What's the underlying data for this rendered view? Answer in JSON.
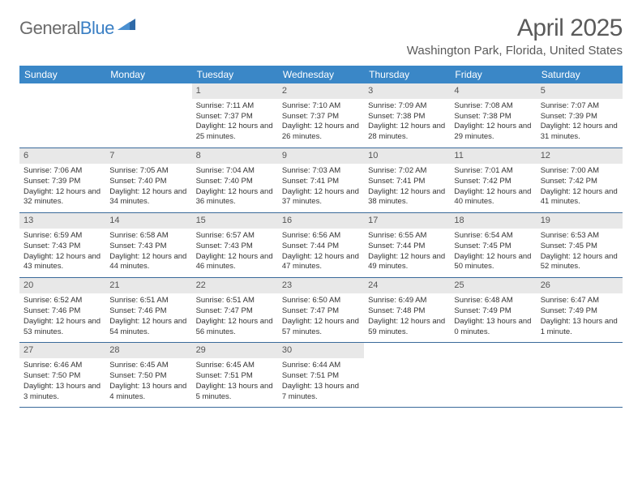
{
  "logo": {
    "text1": "General",
    "text2": "Blue"
  },
  "title": "April 2025",
  "location": "Washington Park, Florida, United States",
  "header_bg": "#3a87c7",
  "border_color": "#3a6a9a",
  "daynum_bg": "#e8e8e8",
  "day_names": [
    "Sunday",
    "Monday",
    "Tuesday",
    "Wednesday",
    "Thursday",
    "Friday",
    "Saturday"
  ],
  "weeks": [
    [
      null,
      null,
      {
        "n": "1",
        "sr": "7:11 AM",
        "ss": "7:37 PM",
        "dl": "12 hours and 25 minutes."
      },
      {
        "n": "2",
        "sr": "7:10 AM",
        "ss": "7:37 PM",
        "dl": "12 hours and 26 minutes."
      },
      {
        "n": "3",
        "sr": "7:09 AM",
        "ss": "7:38 PM",
        "dl": "12 hours and 28 minutes."
      },
      {
        "n": "4",
        "sr": "7:08 AM",
        "ss": "7:38 PM",
        "dl": "12 hours and 29 minutes."
      },
      {
        "n": "5",
        "sr": "7:07 AM",
        "ss": "7:39 PM",
        "dl": "12 hours and 31 minutes."
      }
    ],
    [
      {
        "n": "6",
        "sr": "7:06 AM",
        "ss": "7:39 PM",
        "dl": "12 hours and 32 minutes."
      },
      {
        "n": "7",
        "sr": "7:05 AM",
        "ss": "7:40 PM",
        "dl": "12 hours and 34 minutes."
      },
      {
        "n": "8",
        "sr": "7:04 AM",
        "ss": "7:40 PM",
        "dl": "12 hours and 36 minutes."
      },
      {
        "n": "9",
        "sr": "7:03 AM",
        "ss": "7:41 PM",
        "dl": "12 hours and 37 minutes."
      },
      {
        "n": "10",
        "sr": "7:02 AM",
        "ss": "7:41 PM",
        "dl": "12 hours and 38 minutes."
      },
      {
        "n": "11",
        "sr": "7:01 AM",
        "ss": "7:42 PM",
        "dl": "12 hours and 40 minutes."
      },
      {
        "n": "12",
        "sr": "7:00 AM",
        "ss": "7:42 PM",
        "dl": "12 hours and 41 minutes."
      }
    ],
    [
      {
        "n": "13",
        "sr": "6:59 AM",
        "ss": "7:43 PM",
        "dl": "12 hours and 43 minutes."
      },
      {
        "n": "14",
        "sr": "6:58 AM",
        "ss": "7:43 PM",
        "dl": "12 hours and 44 minutes."
      },
      {
        "n": "15",
        "sr": "6:57 AM",
        "ss": "7:43 PM",
        "dl": "12 hours and 46 minutes."
      },
      {
        "n": "16",
        "sr": "6:56 AM",
        "ss": "7:44 PM",
        "dl": "12 hours and 47 minutes."
      },
      {
        "n": "17",
        "sr": "6:55 AM",
        "ss": "7:44 PM",
        "dl": "12 hours and 49 minutes."
      },
      {
        "n": "18",
        "sr": "6:54 AM",
        "ss": "7:45 PM",
        "dl": "12 hours and 50 minutes."
      },
      {
        "n": "19",
        "sr": "6:53 AM",
        "ss": "7:45 PM",
        "dl": "12 hours and 52 minutes."
      }
    ],
    [
      {
        "n": "20",
        "sr": "6:52 AM",
        "ss": "7:46 PM",
        "dl": "12 hours and 53 minutes."
      },
      {
        "n": "21",
        "sr": "6:51 AM",
        "ss": "7:46 PM",
        "dl": "12 hours and 54 minutes."
      },
      {
        "n": "22",
        "sr": "6:51 AM",
        "ss": "7:47 PM",
        "dl": "12 hours and 56 minutes."
      },
      {
        "n": "23",
        "sr": "6:50 AM",
        "ss": "7:47 PM",
        "dl": "12 hours and 57 minutes."
      },
      {
        "n": "24",
        "sr": "6:49 AM",
        "ss": "7:48 PM",
        "dl": "12 hours and 59 minutes."
      },
      {
        "n": "25",
        "sr": "6:48 AM",
        "ss": "7:49 PM",
        "dl": "13 hours and 0 minutes."
      },
      {
        "n": "26",
        "sr": "6:47 AM",
        "ss": "7:49 PM",
        "dl": "13 hours and 1 minute."
      }
    ],
    [
      {
        "n": "27",
        "sr": "6:46 AM",
        "ss": "7:50 PM",
        "dl": "13 hours and 3 minutes."
      },
      {
        "n": "28",
        "sr": "6:45 AM",
        "ss": "7:50 PM",
        "dl": "13 hours and 4 minutes."
      },
      {
        "n": "29",
        "sr": "6:45 AM",
        "ss": "7:51 PM",
        "dl": "13 hours and 5 minutes."
      },
      {
        "n": "30",
        "sr": "6:44 AM",
        "ss": "7:51 PM",
        "dl": "13 hours and 7 minutes."
      },
      null,
      null,
      null
    ]
  ],
  "labels": {
    "sunrise": "Sunrise:",
    "sunset": "Sunset:",
    "daylight": "Daylight:"
  }
}
